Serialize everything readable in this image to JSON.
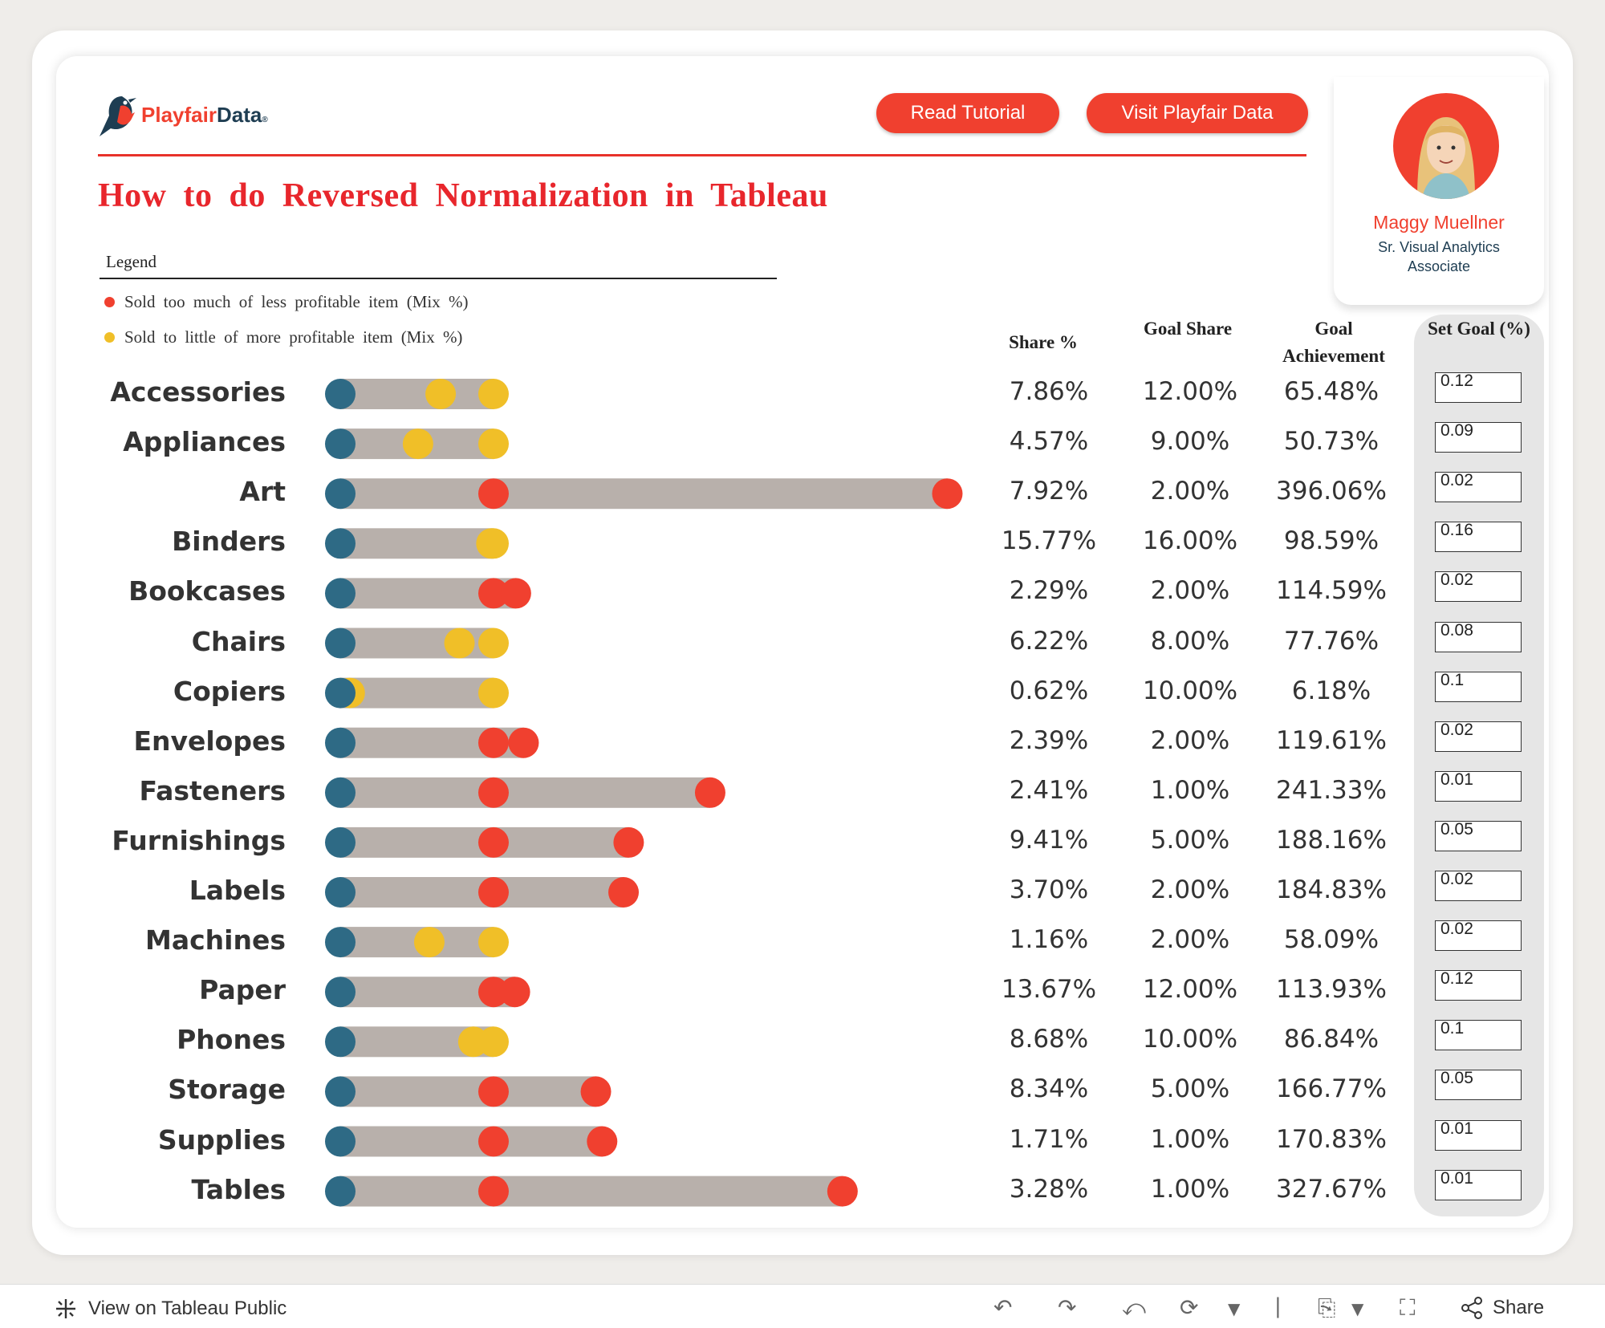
{
  "header": {
    "logo_part1": "Playfair",
    "logo_part2": "Data",
    "logo_reg": "®",
    "tutorial_button": "Read Tutorial",
    "visit_button": "Visit Playfair Data",
    "title": "How to do Reversed Normalization in Tableau"
  },
  "profile": {
    "name": "Maggy Muellner",
    "role": "Sr. Visual Analytics Associate"
  },
  "legend": {
    "title": "Legend",
    "items": [
      {
        "label": "Sold too much of less profitable item (Mix %)",
        "color": "#f0402f"
      },
      {
        "label": "Sold to little of more profitable item (Mix %)",
        "color": "#f0bf28"
      }
    ]
  },
  "columns": {
    "share": "Share %",
    "goal_share": "Goal Share",
    "goal_achievement": "Goal Achievement",
    "set_goal": "Set Goal (%)"
  },
  "colors": {
    "start_dot": "#2e6a85",
    "bar": "#b8b0ab",
    "over": "#f0402f",
    "under": "#f0bf28"
  },
  "chart_data": {
    "type": "dot-bar",
    "categories": [
      "Accessories",
      "Appliances",
      "Art",
      "Binders",
      "Bookcases",
      "Chairs",
      "Copiers",
      "Envelopes",
      "Fasteners",
      "Furnishings",
      "Labels",
      "Machines",
      "Paper",
      "Phones",
      "Storage",
      "Supplies",
      "Tables"
    ],
    "share_pct": [
      "7.86%",
      "4.57%",
      "7.92%",
      "15.77%",
      "2.29%",
      "6.22%",
      "0.62%",
      "2.39%",
      "2.41%",
      "9.41%",
      "3.70%",
      "1.16%",
      "13.67%",
      "8.68%",
      "8.34%",
      "1.71%",
      "3.28%"
    ],
    "goal_share": [
      "12.00%",
      "9.00%",
      "2.00%",
      "16.00%",
      "2.00%",
      "8.00%",
      "10.00%",
      "2.00%",
      "1.00%",
      "5.00%",
      "2.00%",
      "2.00%",
      "12.00%",
      "10.00%",
      "5.00%",
      "1.00%",
      "1.00%"
    ],
    "goal_achievement": [
      "65.48%",
      "50.73%",
      "396.06%",
      "98.59%",
      "114.59%",
      "77.76%",
      "6.18%",
      "119.61%",
      "241.33%",
      "188.16%",
      "184.83%",
      "58.09%",
      "113.93%",
      "86.84%",
      "166.77%",
      "170.83%",
      "327.67%"
    ],
    "achievement_values": [
      65.48,
      50.73,
      396.06,
      98.59,
      114.59,
      77.76,
      6.18,
      119.61,
      241.33,
      188.16,
      184.83,
      58.09,
      113.93,
      86.84,
      166.77,
      170.83,
      327.67
    ],
    "set_goal": [
      "0.12",
      "0.09",
      "0.02",
      "0.16",
      "0.02",
      "0.08",
      "0.1",
      "0.02",
      "0.01",
      "0.05",
      "0.02",
      "0.02",
      "0.12",
      "0.1",
      "0.05",
      "0.01",
      "0.01"
    ]
  },
  "footer": {
    "view_link": "View on Tableau Public",
    "share": "Share"
  }
}
